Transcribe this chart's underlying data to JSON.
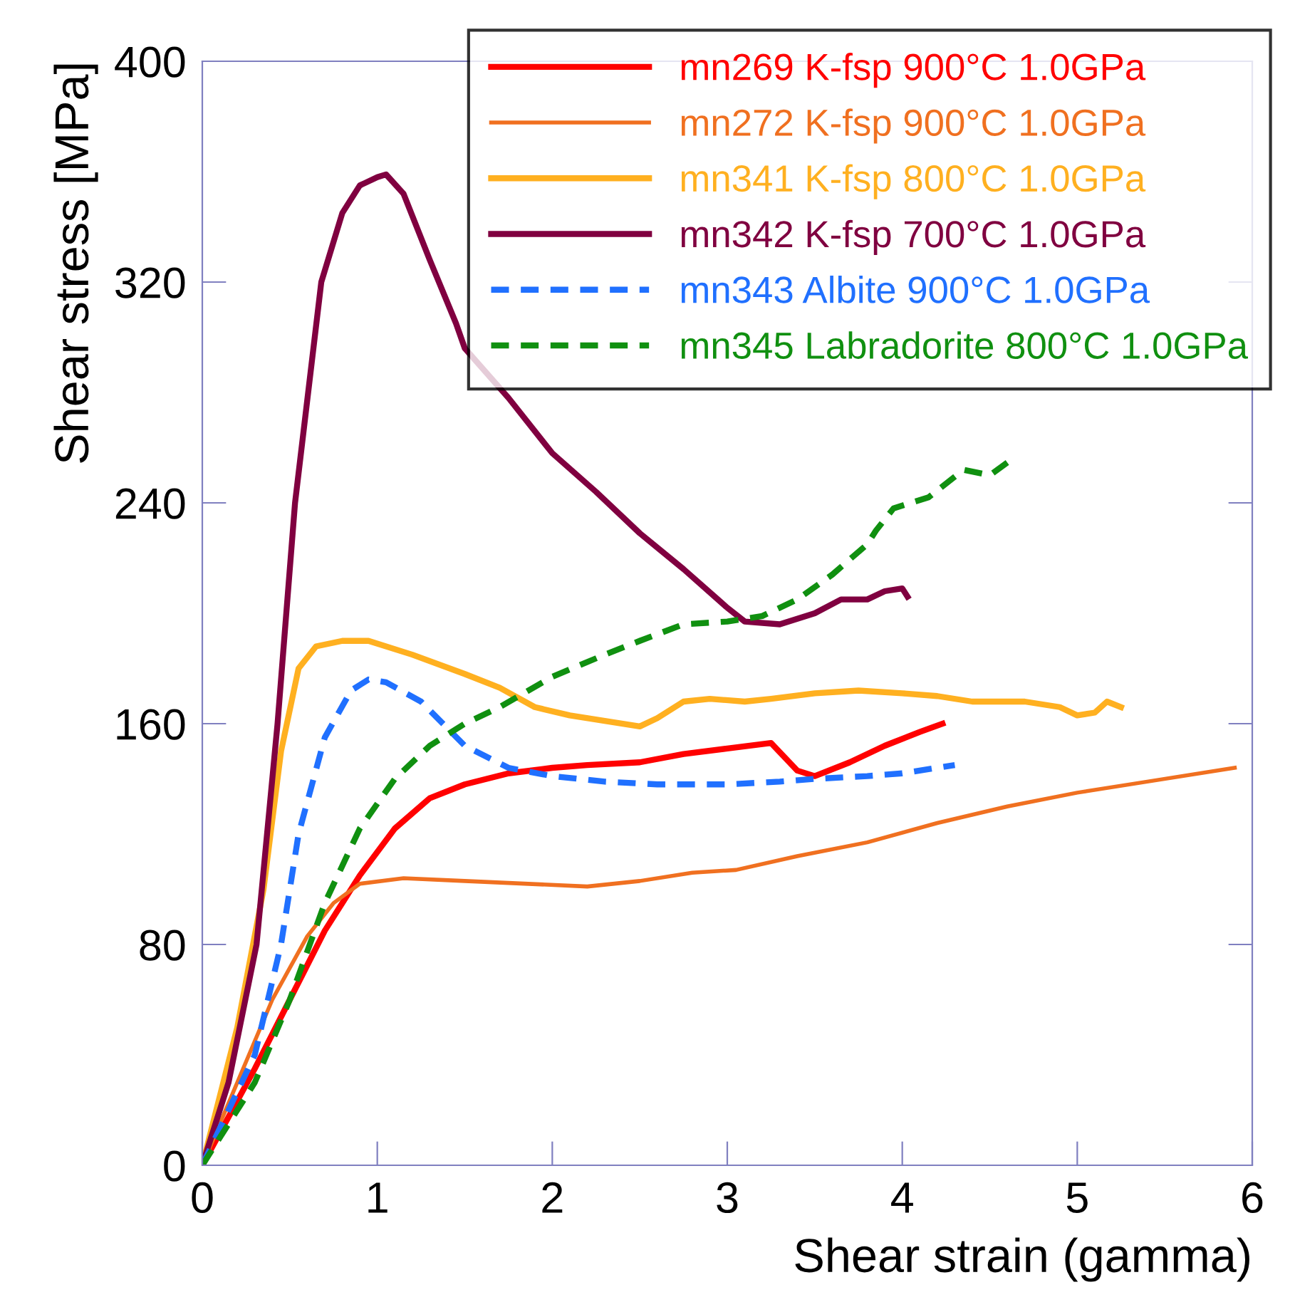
{
  "chart_data": {
    "type": "line",
    "xlabel": "Shear strain (gamma)",
    "ylabel": "Shear stress [MPa]",
    "xlim": [
      0,
      6
    ],
    "ylim": [
      0,
      400
    ],
    "xticks": [
      0,
      1,
      2,
      3,
      4,
      5,
      6
    ],
    "yticks": [
      0,
      80,
      160,
      240,
      320,
      400
    ],
    "grid": false,
    "legend": "top right",
    "marker": "none",
    "series": [
      {
        "name": "mn269 K-fsp 900°C 1.0GPa",
        "color": "#ff0000",
        "line_style": "solid",
        "x": [
          0,
          0.3,
          0.5,
          0.7,
          0.9,
          1.1,
          1.3,
          1.5,
          1.75,
          2.0,
          2.2,
          2.5,
          2.75,
          3.0,
          3.25,
          3.4,
          3.5,
          3.7,
          3.9,
          4.1,
          4.23
        ],
        "values": [
          0,
          35,
          60,
          85,
          105,
          122,
          133,
          138,
          142,
          144,
          145,
          146,
          149,
          151,
          153,
          143,
          141,
          146,
          152,
          157,
          160
        ]
      },
      {
        "name": "mn272 K-fsp 900°C 1.0GPa",
        "color": "#f07020",
        "line_style": "solid",
        "x": [
          0,
          0.2,
          0.4,
          0.6,
          0.75,
          0.9,
          1.15,
          1.5,
          2.2,
          2.5,
          2.8,
          3.05,
          3.4,
          3.8,
          4.2,
          4.6,
          5.0,
          5.4,
          5.9
        ],
        "values": [
          0,
          30,
          60,
          83,
          95,
          102,
          104,
          103,
          101,
          103,
          106,
          107,
          112,
          117,
          124,
          130,
          135,
          139,
          144
        ]
      },
      {
        "name": "mn341 K-fsp 800°C 1.0GPa",
        "color": "#ffb020",
        "line_style": "solid",
        "x": [
          0,
          0.2,
          0.35,
          0.45,
          0.55,
          0.65,
          0.8,
          0.95,
          1.2,
          1.5,
          1.7,
          1.9,
          2.1,
          2.3,
          2.5,
          2.6,
          2.75,
          2.9,
          3.1,
          3.25,
          3.5,
          3.75,
          4.0,
          4.2,
          4.4,
          4.7,
          4.9,
          5.0,
          5.1,
          5.17,
          5.25
        ],
        "values": [
          0,
          50,
          100,
          150,
          180,
          188,
          190,
          190,
          185,
          178,
          173,
          166,
          163,
          161,
          159,
          162,
          168,
          169,
          168,
          169,
          171,
          172,
          171,
          170,
          168,
          168,
          166,
          163,
          164,
          168,
          166
        ]
      },
      {
        "name": "mn342 K-fsp 700°C 1.0GPa",
        "color": "#800040",
        "line_style": "solid",
        "x": [
          0,
          0.15,
          0.31,
          0.43,
          0.53,
          0.68,
          0.8,
          0.9,
          1.0,
          1.05,
          1.15,
          1.3,
          1.45,
          1.5,
          1.75,
          2.0,
          2.25,
          2.5,
          2.75,
          3.0,
          3.1,
          3.3,
          3.5,
          3.65,
          3.8,
          3.9,
          4.0,
          4.03
        ],
        "values": [
          0,
          30,
          80,
          160,
          240,
          320,
          345,
          355,
          358,
          359,
          352,
          328,
          305,
          296,
          278,
          258,
          244,
          229,
          216,
          202,
          197,
          196,
          200,
          205,
          205,
          208,
          209,
          206
        ]
      },
      {
        "name": "mn343 Albite 900°C 1.0GPa",
        "color": "#2070ff",
        "line_style": "dashed",
        "x": [
          0,
          0.3,
          0.45,
          0.55,
          0.7,
          0.85,
          0.95,
          1.05,
          1.25,
          1.5,
          1.75,
          2.0,
          2.3,
          2.6,
          3.0,
          3.3,
          3.5,
          3.8,
          4.0,
          4.3
        ],
        "values": [
          0,
          40,
          80,
          120,
          155,
          172,
          176,
          175,
          168,
          152,
          144,
          141,
          139,
          138,
          138,
          139,
          140,
          141,
          142,
          145
        ]
      },
      {
        "name": "mn345 Labradorite 800°C 1.0GPa",
        "color": "#109010",
        "line_style": "dashed",
        "x": [
          0,
          0.3,
          0.5,
          0.7,
          0.9,
          1.1,
          1.3,
          1.5,
          1.7,
          2.0,
          2.3,
          2.5,
          2.75,
          3.0,
          3.2,
          3.4,
          3.6,
          3.8,
          3.85,
          3.95,
          4.15,
          4.35,
          4.5,
          4.63
        ],
        "values": [
          0,
          30,
          60,
          95,
          122,
          140,
          152,
          160,
          166,
          177,
          185,
          190,
          196,
          197,
          199,
          205,
          214,
          225,
          230,
          238,
          242,
          252,
          250,
          256
        ]
      }
    ]
  }
}
